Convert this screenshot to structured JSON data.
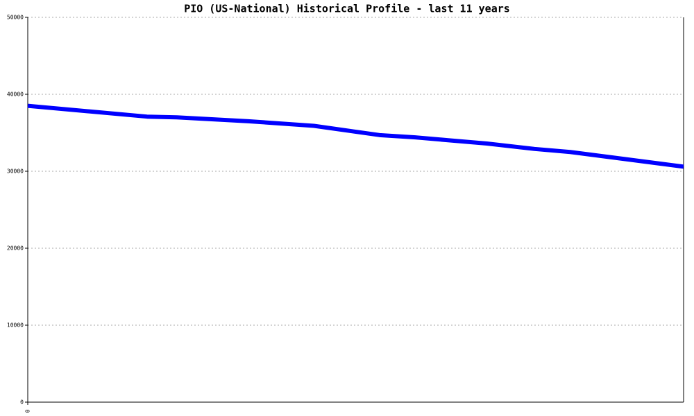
{
  "chart_data": {
    "type": "line",
    "title": "PIO (US-National) Historical Profile - last 11 years",
    "x": [
      0,
      2,
      2.5,
      3.7,
      4.8,
      5.9,
      6.5,
      7.1,
      7.7,
      8.5,
      9.1,
      11
    ],
    "series": [
      {
        "color": "#0000ff",
        "values": [
          38500,
          37100,
          37000,
          36500,
          35900,
          34700,
          34400,
          34000,
          33600,
          32900,
          32500,
          30600
        ]
      }
    ],
    "xlim": [
      0,
      11
    ],
    "xticks": [
      0
    ],
    "ylim": [
      0,
      50000
    ],
    "yticks": [
      0,
      10000,
      20000,
      30000,
      40000,
      50000
    ],
    "grid": true
  }
}
